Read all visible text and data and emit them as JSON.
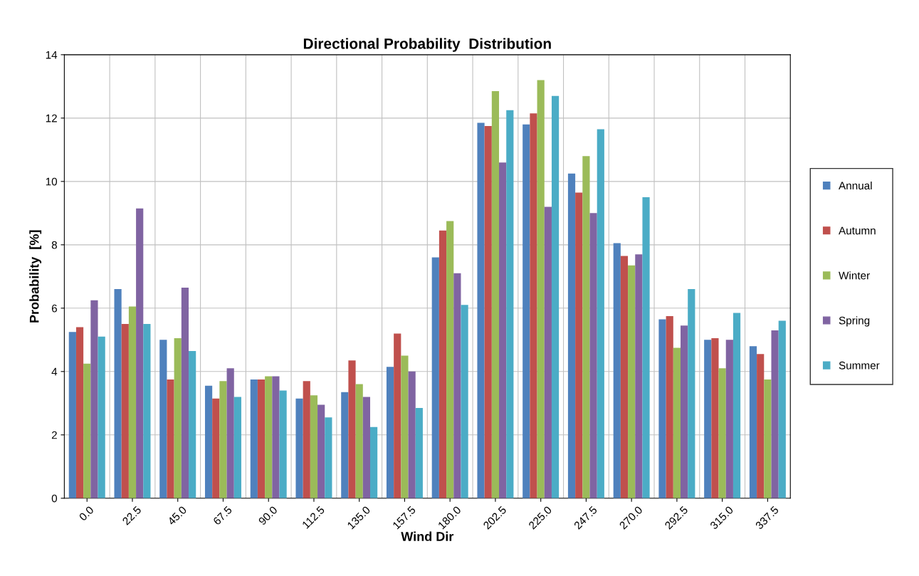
{
  "chart_data": {
    "type": "bar",
    "title": "Directional Probability  Distribution",
    "xlabel": "Wind Dir",
    "ylabel": "Probability  [%]",
    "categories": [
      "0.0",
      "22.5",
      "45.0",
      "67.5",
      "90.0",
      "112.5",
      "135.0",
      "157.5",
      "180.0",
      "202.5",
      "225.0",
      "247.5",
      "270.0",
      "292.5",
      "315.0",
      "337.5"
    ],
    "series": [
      {
        "name": "Annual",
        "color": "#4f81bd",
        "values": [
          5.25,
          6.6,
          5.0,
          3.55,
          3.75,
          3.15,
          3.35,
          4.15,
          7.6,
          11.85,
          11.8,
          10.25,
          8.05,
          5.65,
          5.0,
          4.8
        ]
      },
      {
        "name": "Autumn",
        "color": "#c0504d",
        "values": [
          5.4,
          5.5,
          3.75,
          3.15,
          3.75,
          3.7,
          4.35,
          5.2,
          8.45,
          11.75,
          12.15,
          9.65,
          7.65,
          5.75,
          5.05,
          4.55
        ]
      },
      {
        "name": "Winter",
        "color": "#9bbb59",
        "values": [
          4.25,
          6.05,
          5.05,
          3.7,
          3.85,
          3.25,
          3.6,
          4.5,
          8.75,
          12.85,
          13.2,
          10.8,
          7.35,
          4.75,
          4.1,
          3.75
        ]
      },
      {
        "name": "Spring",
        "color": "#8064a2",
        "values": [
          6.25,
          9.15,
          6.65,
          4.1,
          3.85,
          2.95,
          3.2,
          4.0,
          7.1,
          10.6,
          9.2,
          9.0,
          7.7,
          5.45,
          5.0,
          5.3
        ]
      },
      {
        "name": "Summer",
        "color": "#4bacc6",
        "values": [
          5.1,
          5.5,
          4.65,
          3.2,
          3.4,
          2.55,
          2.25,
          2.85,
          6.1,
          12.25,
          12.7,
          11.65,
          9.5,
          6.6,
          5.85,
          5.6
        ]
      }
    ],
    "ylim": [
      0,
      14
    ],
    "yticks": [
      0,
      2,
      4,
      6,
      8,
      10,
      12,
      14
    ],
    "grid": true,
    "legend": "right"
  }
}
